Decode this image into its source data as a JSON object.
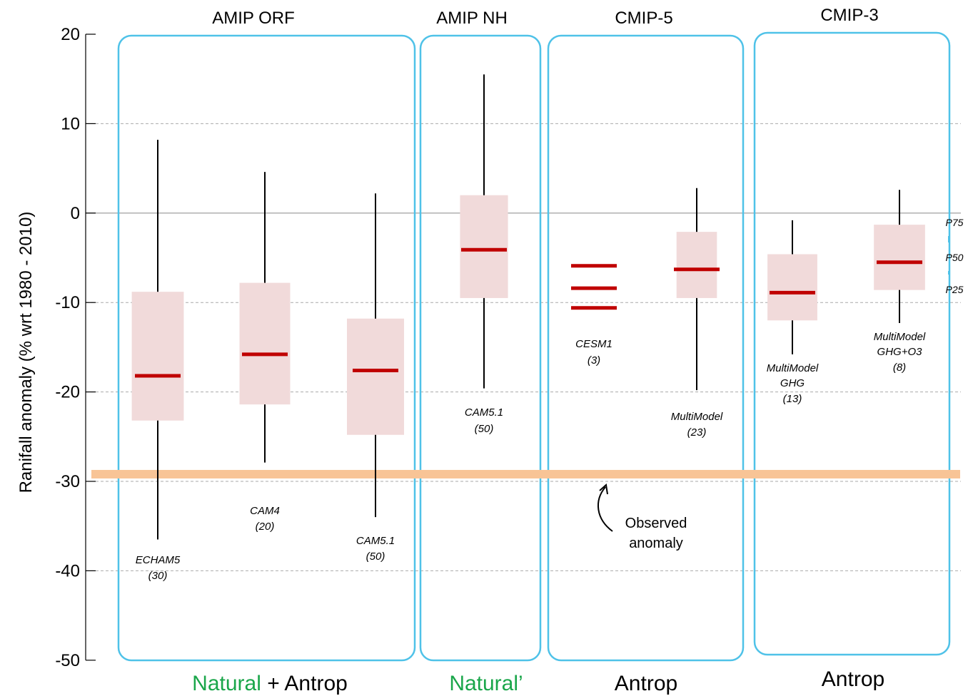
{
  "chart_data": {
    "type": "box",
    "ylabel": "Ranifall anomaly (% wrt  1980 - 2010)",
    "ylim": [
      -50,
      20
    ],
    "yticks": [
      20,
      10,
      0,
      -10,
      -20,
      -30,
      -40,
      -50
    ],
    "grid": "dashed horizontal at -10, -20, -30, -40 and 10; solid at 0",
    "groups": [
      {
        "title": "AMIP ORF",
        "bottom_parts": [
          {
            "text": "Natural",
            "color": "#1aa64a"
          },
          {
            "text": " + Antrop",
            "color": "#000000"
          }
        ],
        "series": [
          {
            "model": "ECHAM5",
            "count": "(30)",
            "whisker_low": -36.5,
            "p25": -23.2,
            "p50": -18.2,
            "p75": -8.8,
            "whisker_high": 8.2
          },
          {
            "model": "CAM4",
            "count": "(20)",
            "whisker_low": -27.9,
            "p25": -21.4,
            "p50": -15.8,
            "p75": -7.8,
            "whisker_high": 4.6
          },
          {
            "model": "CAM5.1",
            "count": "(50)",
            "whisker_low": -34.0,
            "p25": -24.8,
            "p50": -17.6,
            "p75": -11.8,
            "whisker_high": 2.2
          }
        ]
      },
      {
        "title": "AMIP NH",
        "bottom_parts": [
          {
            "text": "Natural’",
            "color": "#1aa64a"
          }
        ],
        "series": [
          {
            "model": "CAM5.1",
            "count": "(50)",
            "whisker_low": -19.6,
            "p25": -9.5,
            "p50": -4.1,
            "p75": 2.0,
            "whisker_high": 15.5
          }
        ]
      },
      {
        "title": "CMIP-5",
        "bottom_parts": [
          {
            "text": "Antrop",
            "color": "#000000"
          }
        ],
        "series": [
          {
            "model": "CESM1",
            "count": "(3)",
            "members": [
              -5.9,
              -8.4,
              -10.6
            ]
          },
          {
            "model": "MultiModel",
            "count": "(23)",
            "whisker_low": -19.8,
            "p25": -9.5,
            "p50": -6.3,
            "p75": -2.1,
            "whisker_high": 2.8
          }
        ]
      },
      {
        "title": "CMIP-3",
        "bottom_parts": [
          {
            "text": "Antrop",
            "color": "#000000"
          }
        ],
        "series": [
          {
            "model": "MultiModel",
            "model_line2": "GHG",
            "count": "(13)",
            "whisker_low": -15.8,
            "p25": -12.0,
            "p50": -8.9,
            "p75": -4.6,
            "whisker_high": -0.8
          },
          {
            "model": "MultiModel",
            "model_line2": "GHG+O3",
            "count": "(8)",
            "whisker_low": -12.3,
            "p25": -8.6,
            "p50": -5.5,
            "p75": -1.3,
            "whisker_high": 2.6
          }
        ]
      }
    ],
    "observed": {
      "value": -29.2,
      "label_line1": "Observed",
      "label_line2": "anomaly"
    },
    "legend": {
      "p75": "P75",
      "p50": "P50",
      "p25": "P25"
    },
    "colors": {
      "box_fill": "#f1dada",
      "median": "#c00000",
      "whisker": "#000000",
      "group_border": "#4fc2e8",
      "observed_band": "#f8c496",
      "grid": "#aaaaaa"
    }
  }
}
